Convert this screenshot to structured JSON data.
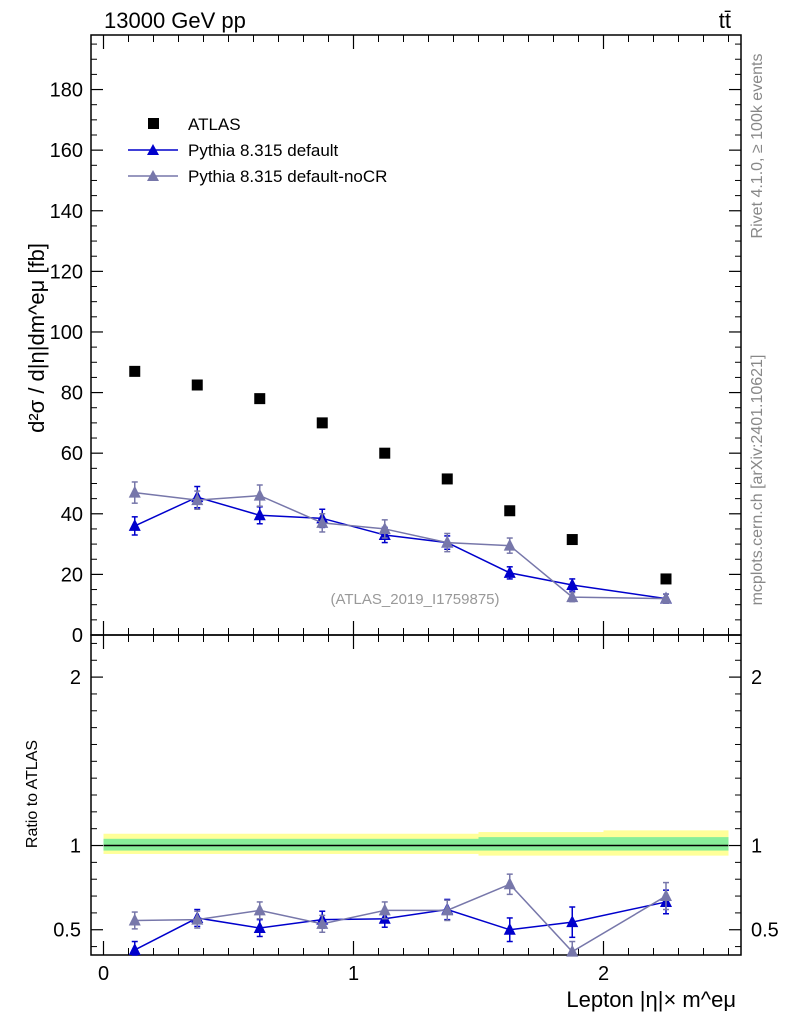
{
  "header": {
    "energy_label": "13000 GeV pp",
    "process_label": "tt̄"
  },
  "side_labels": {
    "rivet": "Rivet 4.1.0, ≥ 100k events",
    "mcplots": "mcplots.cern.ch [arXiv:2401.10621]"
  },
  "analysis_label": "(ATLAS_2019_I1759875)",
  "chart_data": [
    {
      "type": "scatter",
      "title": "",
      "xlabel": "Lepton |η|× m^eμ",
      "ylabel": "d²σ / d|η|dm^eμ [fb]",
      "xlim": [
        -0.05,
        2.55
      ],
      "ylim": [
        0,
        198
      ],
      "yticks": [
        0,
        20,
        40,
        60,
        80,
        100,
        120,
        140,
        160,
        180
      ],
      "ytick_labels": [
        "0",
        "20",
        "40",
        "60",
        "80",
        "100",
        "120",
        "140",
        "160",
        "180"
      ],
      "x": [
        0.125,
        0.375,
        0.625,
        0.875,
        1.125,
        1.375,
        1.625,
        1.875,
        2.25
      ],
      "legend": [
        "ATLAS",
        "Pythia 8.315 default",
        "Pythia 8.315 default-noCR"
      ],
      "legend_position": "top-left",
      "series": [
        {
          "name": "ATLAS",
          "color": "#000000",
          "marker": "square",
          "values": [
            87,
            82.5,
            78,
            70,
            60,
            51.5,
            41,
            31.5,
            18.5
          ]
        },
        {
          "name": "Pythia 8.315 default",
          "color": "#0000cc",
          "marker": "triangle",
          "values": [
            36,
            45.5,
            39.5,
            38.5,
            33,
            30.5,
            20.5,
            16.5,
            12
          ],
          "errors": [
            3,
            3.5,
            2.8,
            3,
            2.5,
            2.2,
            2,
            2,
            1.5
          ]
        },
        {
          "name": "Pythia 8.315 default-noCR",
          "color": "#7777aa",
          "marker": "triangle",
          "values": [
            47,
            44.5,
            46,
            37,
            35,
            30.5,
            29.5,
            12.5,
            12
          ],
          "errors": [
            3.5,
            3,
            3.5,
            3,
            3,
            3,
            2.5,
            1.5,
            1.5
          ]
        }
      ]
    },
    {
      "type": "scatter",
      "title": "",
      "xlabel": "Lepton |η|× m^eμ",
      "ylabel": "Ratio to ATLAS",
      "xlim": [
        -0.05,
        2.55
      ],
      "ylim": [
        0.35,
        2.25
      ],
      "yticks": [
        0.5,
        1,
        2
      ],
      "ytick_labels": [
        "0.5",
        "1",
        "2"
      ],
      "xticks": [
        0,
        1,
        2
      ],
      "xtick_labels": [
        "0",
        "1",
        "2"
      ],
      "x": [
        0.125,
        0.375,
        0.625,
        0.875,
        1.125,
        1.375,
        1.625,
        1.875,
        2.25
      ],
      "reference_line": 1,
      "bands": {
        "outer": {
          "color": "#ffff99",
          "lo": [
            0.95,
            0.95,
            0.95,
            0.95,
            0.95,
            0.95,
            0.94,
            0.94,
            0.94
          ],
          "hi": [
            1.07,
            1.07,
            1.07,
            1.07,
            1.07,
            1.07,
            1.08,
            1.08,
            1.09
          ]
        },
        "inner": {
          "color": "#88ee99",
          "lo": [
            0.97,
            0.97,
            0.97,
            0.97,
            0.97,
            0.97,
            0.97,
            0.97,
            0.97
          ],
          "hi": [
            1.04,
            1.04,
            1.04,
            1.04,
            1.04,
            1.04,
            1.05,
            1.05,
            1.05
          ]
        }
      },
      "series": [
        {
          "name": "Pythia 8.315 default",
          "color": "#0000cc",
          "marker": "triangle",
          "values": [
            0.38,
            0.57,
            0.51,
            0.56,
            0.565,
            0.62,
            0.5,
            0.545,
            0.665
          ],
          "errors": [
            0.05,
            0.05,
            0.05,
            0.05,
            0.05,
            0.06,
            0.07,
            0.09,
            0.07
          ]
        },
        {
          "name": "Pythia 8.315 default-noCR",
          "color": "#7777aa",
          "marker": "triangle",
          "values": [
            0.555,
            0.56,
            0.615,
            0.535,
            0.615,
            0.615,
            0.77,
            0.37,
            0.7
          ],
          "errors": [
            0.05,
            0.05,
            0.05,
            0.05,
            0.05,
            0.06,
            0.06,
            0.06,
            0.08
          ]
        }
      ]
    }
  ]
}
